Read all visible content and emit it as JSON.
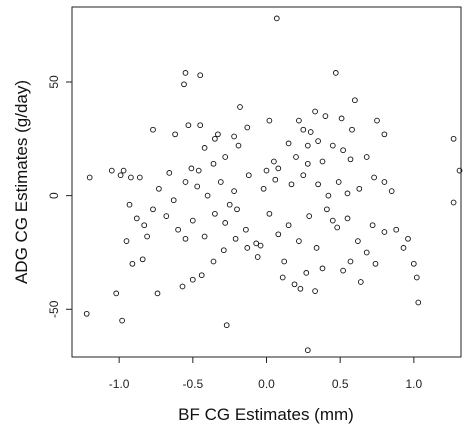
{
  "chart_data": {
    "type": "scatter",
    "title": "",
    "xlabel": "BF CG Estimates (mm)",
    "ylabel": "ADG CG Estimates (g/day)",
    "xlim": [
      -1.32,
      1.32
    ],
    "ylim": [
      -71,
      83
    ],
    "xticks": [
      -1.0,
      -0.5,
      0.0,
      0.5,
      1.0
    ],
    "xtick_labels": [
      "-1.0",
      "-0.5",
      "0.0",
      "0.5",
      "1.0"
    ],
    "yticks": [
      -50,
      0,
      50
    ],
    "ytick_labels": [
      "-50",
      "0",
      "50"
    ],
    "grid": false,
    "legend": "none",
    "marker": "open-circle",
    "points": [
      [
        0.07,
        78
      ],
      [
        -0.55,
        54
      ],
      [
        0.47,
        54
      ],
      [
        -0.45,
        53
      ],
      [
        -0.56,
        49
      ],
      [
        0.6,
        42
      ],
      [
        -0.53,
        31
      ],
      [
        -0.45,
        31
      ],
      [
        -0.77,
        29
      ],
      [
        0.4,
        35
      ],
      [
        -0.18,
        39
      ],
      [
        0.33,
        37
      ],
      [
        0.51,
        34
      ],
      [
        0.02,
        33
      ],
      [
        0.22,
        33
      ],
      [
        0.25,
        29
      ],
      [
        0.3,
        28
      ],
      [
        0.58,
        29
      ],
      [
        0.75,
        33
      ],
      [
        0.8,
        27
      ],
      [
        -0.42,
        21
      ],
      [
        -0.35,
        25
      ],
      [
        -0.33,
        27
      ],
      [
        -0.22,
        26
      ],
      [
        -0.13,
        30
      ],
      [
        0.15,
        23
      ],
      [
        0.28,
        22
      ],
      [
        0.35,
        24
      ],
      [
        0.52,
        20
      ],
      [
        0.57,
        16
      ],
      [
        0.68,
        17
      ],
      [
        -0.62,
        27
      ],
      [
        -0.51,
        12
      ],
      [
        -0.46,
        11
      ],
      [
        -0.36,
        14
      ],
      [
        -0.28,
        17
      ],
      [
        -0.19,
        22
      ],
      [
        0.05,
        15
      ],
      [
        0.08,
        12
      ],
      [
        0.2,
        17
      ],
      [
        0.28,
        14
      ],
      [
        0.38,
        15
      ],
      [
        0.45,
        22
      ],
      [
        -1.05,
        11
      ],
      [
        -0.97,
        11
      ],
      [
        -0.92,
        8
      ],
      [
        -0.99,
        9
      ],
      [
        -0.86,
        8
      ],
      [
        -0.73,
        3
      ],
      [
        -0.66,
        10
      ],
      [
        -0.55,
        6
      ],
      [
        -0.47,
        4
      ],
      [
        -0.4,
        0
      ],
      [
        -0.31,
        6
      ],
      [
        -0.22,
        2
      ],
      [
        -0.12,
        9
      ],
      [
        -0.02,
        3
      ],
      [
        0.06,
        7
      ],
      [
        0.17,
        5
      ],
      [
        0.25,
        9
      ],
      [
        0.35,
        5
      ],
      [
        0.42,
        0
      ],
      [
        0.49,
        6
      ],
      [
        0.55,
        1
      ],
      [
        0.63,
        3
      ],
      [
        0.73,
        8
      ],
      [
        0.8,
        6
      ],
      [
        0.85,
        2
      ],
      [
        1.27,
        25
      ],
      [
        1.31,
        11
      ],
      [
        -1.2,
        8
      ],
      [
        -0.93,
        -4
      ],
      [
        -0.88,
        -10
      ],
      [
        -0.83,
        -13
      ],
      [
        -0.77,
        -6
      ],
      [
        -0.68,
        -9
      ],
      [
        -0.6,
        -15
      ],
      [
        -0.55,
        -19
      ],
      [
        -0.5,
        -11
      ],
      [
        -0.42,
        -18
      ],
      [
        -0.35,
        -8
      ],
      [
        -0.28,
        -12
      ],
      [
        -0.2,
        -6
      ],
      [
        -0.14,
        -15
      ],
      [
        -0.07,
        -21
      ],
      [
        0.02,
        -8
      ],
      [
        0.08,
        -17
      ],
      [
        0.15,
        -13
      ],
      [
        0.22,
        -20
      ],
      [
        0.29,
        -9
      ],
      [
        0.34,
        -23
      ],
      [
        0.41,
        -6
      ],
      [
        0.48,
        -14
      ],
      [
        0.55,
        -10
      ],
      [
        0.62,
        -20
      ],
      [
        0.68,
        -25
      ],
      [
        0.72,
        -13
      ],
      [
        0.8,
        -16
      ],
      [
        0.88,
        -15
      ],
      [
        0.96,
        -19
      ],
      [
        1.27,
        -3
      ],
      [
        -0.95,
        -20
      ],
      [
        -0.91,
        -30
      ],
      [
        -0.84,
        -28
      ],
      [
        -0.81,
        -18
      ],
      [
        -0.57,
        -40
      ],
      [
        -0.5,
        -37
      ],
      [
        -0.44,
        -35
      ],
      [
        -0.36,
        -29
      ],
      [
        -0.29,
        -24
      ],
      [
        -0.21,
        -19
      ],
      [
        -0.13,
        -23
      ],
      [
        -0.06,
        -27
      ],
      [
        0.12,
        -29
      ],
      [
        0.19,
        -39
      ],
      [
        0.23,
        -41
      ],
      [
        0.27,
        -34
      ],
      [
        0.33,
        -42
      ],
      [
        0.38,
        -32
      ],
      [
        0.52,
        -33
      ],
      [
        0.57,
        -29
      ],
      [
        0.64,
        -38
      ],
      [
        0.74,
        -30
      ],
      [
        0.93,
        -23
      ],
      [
        1.0,
        -30
      ],
      [
        1.02,
        -36
      ],
      [
        1.03,
        -47
      ],
      [
        -1.02,
        -43
      ],
      [
        -0.74,
        -43
      ],
      [
        -1.22,
        -52
      ],
      [
        -0.98,
        -55
      ],
      [
        -0.27,
        -57
      ],
      [
        0.28,
        -68
      ],
      [
        0.11,
        -36
      ],
      [
        -0.04,
        -22
      ],
      [
        -0.25,
        -4
      ],
      [
        0.45,
        -11
      ],
      [
        -0.63,
        -2
      ],
      [
        0.0,
        11
      ]
    ]
  }
}
